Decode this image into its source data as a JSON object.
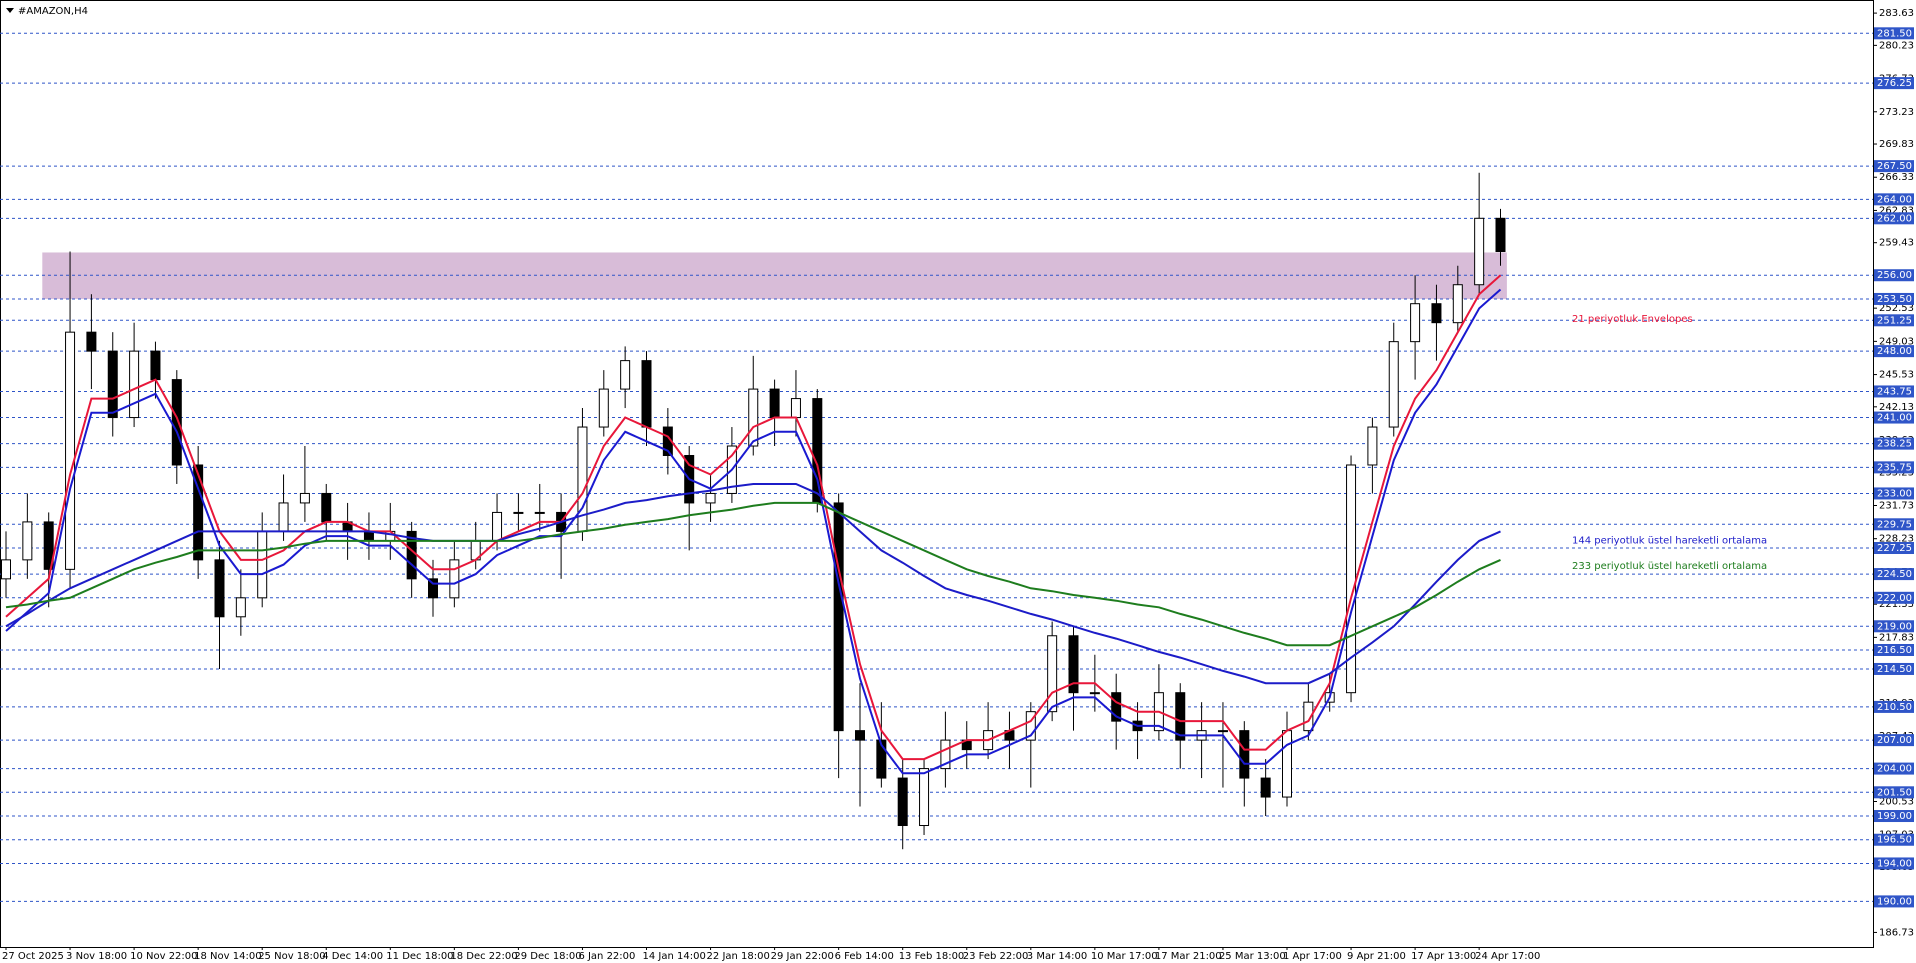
{
  "chart_data": {
    "type": "candlestick",
    "title": "#AMAZON,H4",
    "categories": [
      "27 Oct 2025",
      null,
      null,
      "3 Nov 18:00",
      null,
      null,
      "10 Nov 22:00",
      null,
      null,
      "18 Nov 14:00",
      null,
      null,
      "25 Nov 18:00",
      null,
      null,
      "4 Dec 14:00",
      null,
      null,
      "11 Dec 18:00",
      null,
      null,
      "18 Dec 22:00",
      null,
      null,
      "29 Dec 18:00",
      null,
      null,
      "6 Jan 22:00",
      null,
      null,
      "14 Jan 14:00",
      null,
      null,
      "22 Jan 18:00",
      null,
      null,
      "29 Jan 22:00",
      null,
      null,
      "6 Feb 14:00",
      null,
      null,
      "13 Feb 18:00",
      null,
      null,
      "23 Feb 22:00",
      null,
      null,
      "3 Mar 14:00",
      null,
      null,
      "10 Mar 17:00",
      null,
      null,
      "17 Mar 21:00",
      null,
      null,
      "25 Mar 13:00",
      null,
      null,
      "1 Apr 17:00",
      null,
      null,
      "9 Apr 21:00",
      null,
      null,
      "17 Apr 13:00",
      null,
      null,
      "24 Apr 17:00",
      null
    ],
    "open": [
      224,
      226,
      230,
      225,
      250,
      248,
      241,
      248,
      245,
      236,
      226,
      220,
      222,
      229,
      232,
      233,
      230,
      229,
      228,
      229,
      224,
      222,
      226,
      228,
      231,
      231,
      231,
      229,
      240,
      244,
      247,
      240,
      237,
      232,
      233,
      238,
      244,
      241,
      243,
      232,
      208,
      207,
      203,
      198,
      204,
      207,
      206,
      208,
      207,
      210,
      218,
      212,
      212,
      209,
      208,
      212,
      207,
      208,
      208,
      203,
      201,
      208,
      211,
      212,
      236,
      240,
      249,
      253,
      251,
      255,
      262
    ],
    "high": [
      229,
      233,
      231,
      258.5,
      254,
      250,
      251,
      249,
      246,
      238,
      228,
      225,
      231,
      235,
      238,
      234,
      232,
      231,
      232,
      230,
      226,
      228,
      230,
      233,
      233,
      234,
      233,
      242,
      246,
      248.5,
      248,
      242,
      238,
      235,
      240,
      247.5,
      245,
      246,
      244,
      233,
      213,
      211,
      205,
      205,
      210,
      209,
      211,
      210,
      211,
      219.5,
      219,
      216,
      214,
      211,
      215,
      213,
      211,
      211,
      209,
      205,
      210,
      213,
      214,
      237,
      241,
      251,
      256,
      255,
      257,
      266.8,
      263
    ],
    "low": [
      222,
      224,
      221,
      223,
      244,
      239,
      240,
      243,
      234,
      224,
      214.5,
      218,
      221,
      228,
      230,
      228,
      226,
      226,
      226,
      222,
      220,
      221,
      225,
      227,
      229,
      229,
      224,
      228,
      239,
      242,
      238,
      235,
      227,
      230,
      232,
      237,
      238,
      239,
      231,
      203,
      200,
      202,
      195.5,
      197,
      202,
      204,
      205,
      204,
      202,
      209,
      208,
      210,
      206,
      205,
      207,
      204,
      203,
      202,
      200,
      199,
      200,
      207,
      210,
      211,
      233,
      239,
      245,
      247,
      250,
      254,
      257
    ],
    "close": [
      226,
      230,
      225,
      250,
      248,
      241,
      248,
      245,
      236,
      226,
      220,
      222,
      229,
      232,
      233,
      230,
      229,
      228,
      229,
      224,
      222,
      226,
      228,
      231,
      231,
      231,
      229,
      240,
      244,
      247,
      240,
      237,
      232,
      233,
      238,
      244,
      241,
      243,
      232,
      208,
      207,
      203,
      198,
      204,
      207,
      206,
      208,
      207,
      210,
      218,
      212,
      212,
      209,
      208,
      212,
      207,
      208,
      208,
      203,
      201,
      208,
      211,
      212,
      236,
      240,
      249,
      253,
      251,
      255,
      262,
      258.5
    ],
    "up_color": "#ffffff",
    "down_color": "#000000",
    "series": [
      {
        "name": "21 periyotluk Envelopes",
        "color": "#e8173a",
        "lower_color": "#1a1ad0",
        "values": [
          220,
          222,
          224,
          235,
          243,
          243,
          244,
          245,
          241,
          235,
          229,
          226,
          226,
          227,
          229,
          230,
          230,
          229,
          229,
          227,
          225,
          225,
          226,
          228,
          229,
          230,
          230,
          233,
          238,
          241,
          240,
          239,
          236,
          235,
          237,
          240,
          241,
          241,
          236,
          225,
          215,
          208,
          205,
          205,
          206,
          207,
          207,
          208,
          209,
          212,
          213,
          213,
          211,
          210,
          210,
          209,
          209,
          209,
          206,
          206,
          208,
          209,
          213,
          222,
          230,
          238,
          243,
          246,
          250,
          254,
          256
        ],
        "lower": [
          218.5,
          220.5,
          222.5,
          233.5,
          241.5,
          241.5,
          242.5,
          243.5,
          239.5,
          233.5,
          227.5,
          224.5,
          224.5,
          225.5,
          227.5,
          228.5,
          228.5,
          227.5,
          227.5,
          225.5,
          223.5,
          223.5,
          224.5,
          226.5,
          227.5,
          228.5,
          228.5,
          231.5,
          236.5,
          239.5,
          238.5,
          237.5,
          234.5,
          233.5,
          235.5,
          238.5,
          239.5,
          239.5,
          234.5,
          223.5,
          213.5,
          206.5,
          203.5,
          203.5,
          204.5,
          205.5,
          205.5,
          206.5,
          207.5,
          210.5,
          211.5,
          211.5,
          209.5,
          208.5,
          208.5,
          207.5,
          207.5,
          207.5,
          204.5,
          204.5,
          206.5,
          207.5,
          211.5,
          220.5,
          228.5,
          236.5,
          241.5,
          244.5,
          248.5,
          252.5,
          254.5
        ]
      },
      {
        "name": "144 periyotluk üstel hareketli ortalama",
        "color": "#1c1cc8",
        "values": [
          219,
          220.3,
          221.7,
          223,
          224,
          225,
          226,
          227,
          228,
          229,
          229,
          229,
          229,
          229,
          229,
          229,
          229,
          229,
          228.7,
          228.3,
          228,
          228,
          228,
          228,
          228.7,
          229.3,
          230,
          230.7,
          231.3,
          232,
          232.3,
          232.7,
          233,
          233.3,
          233.7,
          234,
          234,
          234,
          233,
          231,
          229,
          227,
          225.7,
          224.3,
          223,
          222.3,
          221.7,
          221,
          220.3,
          219.7,
          219,
          218.3,
          217.7,
          217,
          216.3,
          215.7,
          215,
          214.3,
          213.7,
          213,
          213,
          213,
          214,
          215.7,
          217.3,
          219,
          221.3,
          223.7,
          226,
          228,
          229
        ]
      },
      {
        "name": "233 periyotluk üstel hareketli ortalama",
        "color": "#1e7d1e",
        "values": [
          221,
          221.3,
          221.7,
          222,
          223,
          224,
          225,
          225.7,
          226.3,
          227,
          227,
          227,
          227,
          227.3,
          227.7,
          228,
          228,
          228,
          228,
          228,
          228,
          228,
          228,
          228,
          228,
          228.3,
          228.7,
          229,
          229.3,
          229.7,
          230,
          230.3,
          230.7,
          231,
          231.3,
          231.7,
          232,
          232,
          232,
          231,
          230,
          229,
          228,
          227,
          226,
          225,
          224.3,
          223.7,
          223,
          222.7,
          222.3,
          222,
          221.7,
          221.3,
          221,
          220.3,
          219.7,
          219,
          218.3,
          217.7,
          217,
          217,
          217,
          218,
          219,
          220,
          221,
          222.3,
          223.7,
          225,
          226
        ]
      }
    ],
    "zone": [
      253.5,
      258.4
    ],
    "zone_color": "#d8bcd8",
    "ylim": [
      185.3,
      284.8
    ],
    "yticks": [
      283.63,
      280.23,
      276.73,
      273.23,
      269.83,
      266.33,
      262.83,
      259.43,
      255.93,
      252.53,
      249.03,
      245.53,
      242.13,
      238.63,
      235.23,
      231.73,
      228.23,
      224.73,
      221.33,
      217.83,
      214.33,
      210.93,
      207.43,
      203.93,
      200.53,
      197.03,
      193.63,
      190.13,
      186.73
    ],
    "levels": [
      {
        "value": 281.5,
        "label": "281.50"
      },
      {
        "value": 276.25,
        "label": "276.25"
      },
      {
        "value": 267.5,
        "label": "267.50"
      },
      {
        "value": 264,
        "label": "264.00"
      },
      {
        "value": 262,
        "label": "262.00"
      },
      {
        "value": 256,
        "label": "256.00"
      },
      {
        "value": 253.5,
        "label": "253.50"
      },
      {
        "value": 251.25,
        "label": "251.25"
      },
      {
        "value": 248,
        "label": "248.00"
      },
      {
        "value": 243.75,
        "label": "243.75"
      },
      {
        "value": 241,
        "label": "241.00"
      },
      {
        "value": 238.25,
        "label": "238.25"
      },
      {
        "value": 235.75,
        "label": "235.75"
      },
      {
        "value": 233,
        "label": "233.00"
      },
      {
        "value": 229.75,
        "label": "229.75"
      },
      {
        "value": 227.25,
        "label": "227.25"
      },
      {
        "value": 224.5,
        "label": "224.50"
      },
      {
        "value": 222,
        "label": "222.00"
      },
      {
        "value": 219,
        "label": "219.00"
      },
      {
        "value": 216.5,
        "label": "216.50"
      },
      {
        "value": 214.5,
        "label": "214.50"
      },
      {
        "value": 210.5,
        "label": "210.50"
      },
      {
        "value": 207,
        "label": "207.00"
      },
      {
        "value": 204,
        "label": "204.00"
      },
      {
        "value": 201.5,
        "label": "201.50"
      },
      {
        "value": 199,
        "label": "199.00"
      },
      {
        "value": 196.5,
        "label": "196.50"
      },
      {
        "value": 194,
        "label": "194.00"
      },
      {
        "value": 190,
        "label": "190.00"
      }
    ],
    "level_color": "#2f55c8"
  }
}
